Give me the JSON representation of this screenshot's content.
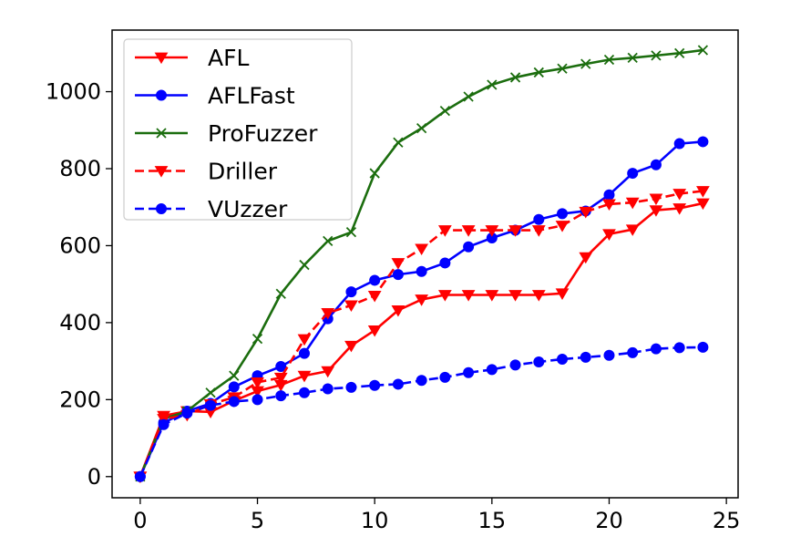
{
  "chart_data": {
    "type": "line",
    "title": "",
    "xlabel": "",
    "ylabel": "",
    "xlim": [
      -1.2,
      25.5
    ],
    "ylim": [
      -55,
      1160
    ],
    "xticks": [
      0,
      5,
      10,
      15,
      20,
      25
    ],
    "yticks": [
      0,
      200,
      400,
      600,
      800,
      1000
    ],
    "xtick_labels": [
      "0",
      "5",
      "10",
      "15",
      "20",
      "25"
    ],
    "ytick_labels": [
      "0",
      "200",
      "400",
      "600",
      "800",
      "1000"
    ],
    "grid": false,
    "legend_position": "top-left",
    "series": [
      {
        "name": "AFL",
        "color": "#ff0000",
        "linestyle": "solid",
        "marker": "triangle-down",
        "x": [
          0,
          1,
          2,
          3,
          4,
          5,
          6,
          7,
          8,
          9,
          10,
          11,
          12,
          13,
          14,
          15,
          16,
          17,
          18,
          19,
          20,
          21,
          22,
          23,
          24
        ],
        "y": [
          0,
          158,
          170,
          168,
          197,
          222,
          238,
          262,
          274,
          340,
          380,
          432,
          460,
          472,
          472,
          472,
          472,
          472,
          476,
          570,
          630,
          642,
          692,
          697,
          710
        ]
      },
      {
        "name": "AFLFast",
        "color": "#0000ff",
        "linestyle": "solid",
        "marker": "circle",
        "x": [
          0,
          1,
          2,
          3,
          4,
          5,
          6,
          7,
          8,
          9,
          10,
          11,
          12,
          13,
          14,
          15,
          16,
          17,
          18,
          19,
          20,
          21,
          22,
          23,
          24
        ],
        "y": [
          0,
          140,
          170,
          190,
          233,
          262,
          286,
          320,
          410,
          480,
          510,
          525,
          533,
          555,
          597,
          620,
          640,
          668,
          683,
          690,
          732,
          788,
          810,
          865,
          870
        ]
      },
      {
        "name": "ProFuzzer",
        "color": "#1b6d0e",
        "linestyle": "solid",
        "marker": "x",
        "x": [
          0,
          1,
          2,
          3,
          4,
          5,
          6,
          7,
          8,
          9,
          10,
          11,
          12,
          13,
          14,
          15,
          16,
          17,
          18,
          19,
          20,
          21,
          22,
          23,
          24
        ],
        "y": [
          0,
          150,
          170,
          218,
          262,
          358,
          475,
          550,
          612,
          635,
          788,
          868,
          905,
          950,
          987,
          1018,
          1037,
          1050,
          1060,
          1072,
          1083,
          1088,
          1094,
          1100,
          1108
        ]
      },
      {
        "name": "Driller",
        "color": "#ff0000",
        "linestyle": "dashed",
        "marker": "triangle-down",
        "x": [
          0,
          1,
          2,
          3,
          4,
          5,
          6,
          7,
          8,
          9,
          10,
          11,
          12,
          13,
          14,
          15,
          16,
          17,
          18,
          19,
          20,
          21,
          22,
          23,
          24
        ],
        "y": [
          0,
          150,
          160,
          188,
          206,
          245,
          257,
          357,
          425,
          445,
          470,
          555,
          592,
          640,
          640,
          640,
          640,
          640,
          652,
          688,
          708,
          712,
          722,
          735,
          742
        ]
      },
      {
        "name": "VUzzer",
        "color": "#0000ff",
        "linestyle": "dashed",
        "marker": "circle",
        "x": [
          0,
          1,
          2,
          3,
          4,
          5,
          6,
          7,
          8,
          9,
          10,
          11,
          12,
          13,
          14,
          15,
          16,
          17,
          18,
          19,
          20,
          21,
          22,
          23,
          24
        ],
        "y": [
          0,
          135,
          165,
          185,
          195,
          200,
          210,
          218,
          228,
          232,
          237,
          240,
          250,
          258,
          270,
          278,
          290,
          298,
          305,
          310,
          315,
          322,
          332,
          335,
          336
        ]
      }
    ]
  }
}
